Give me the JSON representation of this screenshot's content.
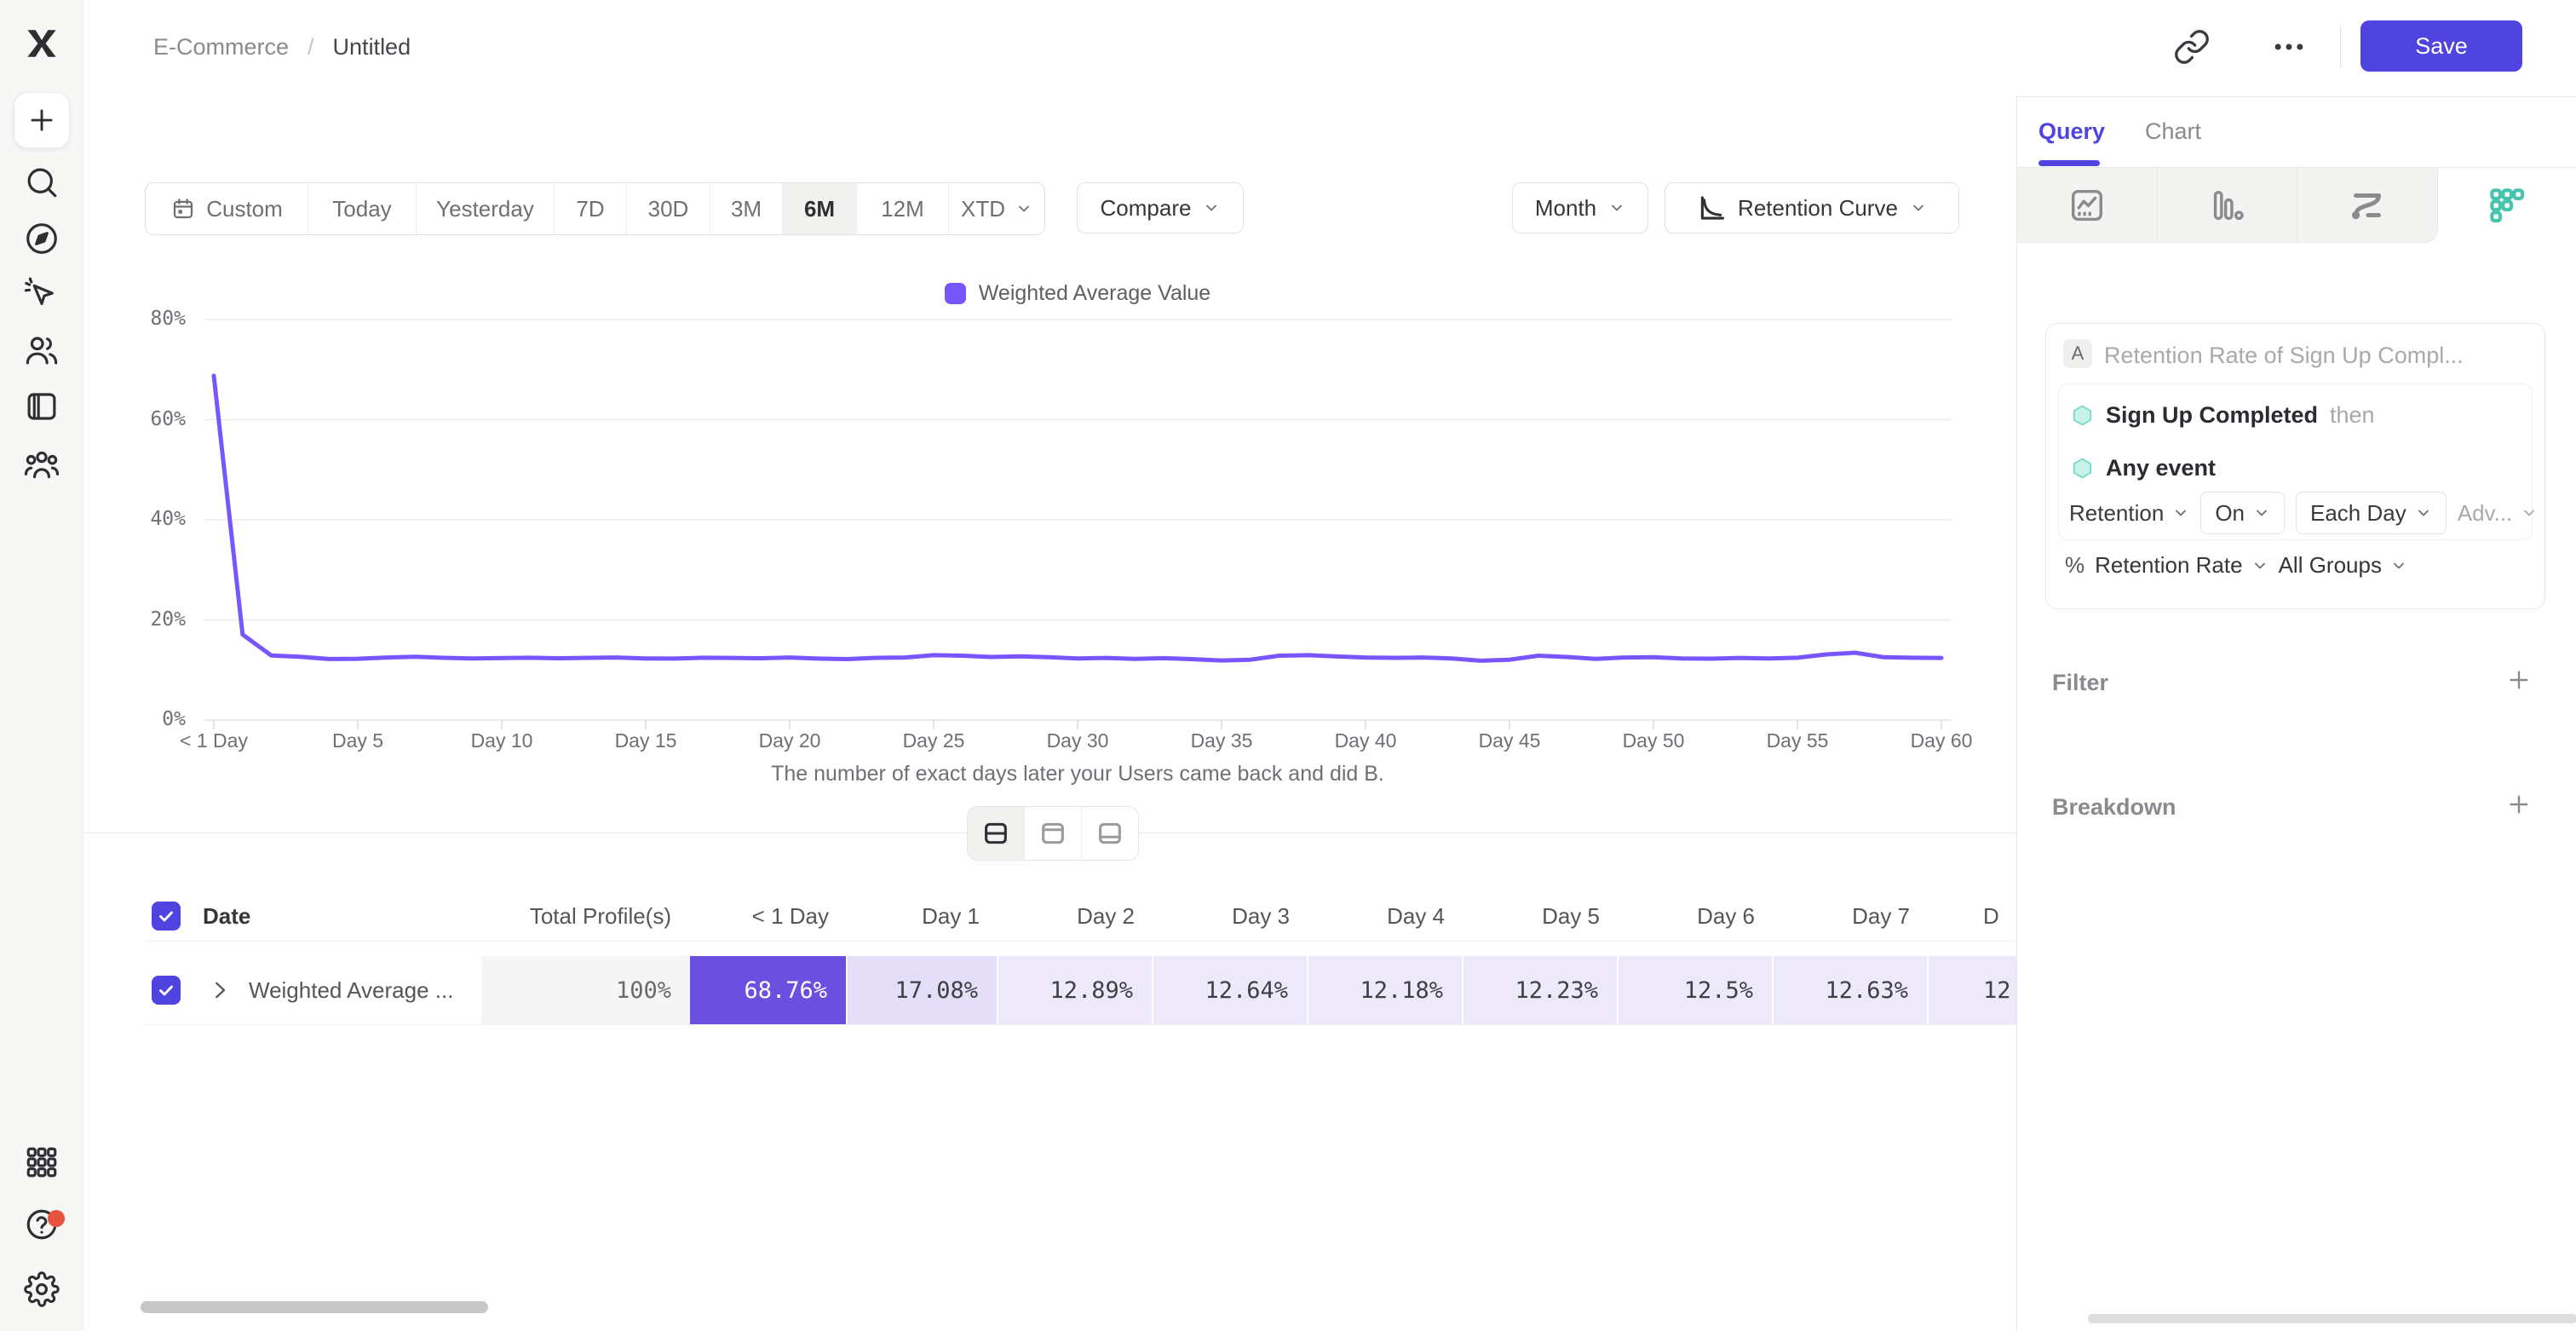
{
  "colors": {
    "accent": "#4f44e0",
    "line": "#7856ff",
    "teal": "#45c4ae",
    "heat_full": "#6b4fe0",
    "heat_day1": "#e4def8",
    "heat_light": "#ede9fb",
    "notification_dot": "#e8533f"
  },
  "sidebar": {
    "items": [
      "mixpanel-logo",
      "create-plus",
      "search",
      "explore-compass",
      "events-pointer",
      "users",
      "boards",
      "cohorts-group"
    ],
    "bottom_items": [
      "apps-grid",
      "help",
      "settings"
    ]
  },
  "header": {
    "breadcrumb_project": "E-Commerce",
    "breadcrumb_sep": "/",
    "breadcrumb_title": "Untitled",
    "save_label": "Save"
  },
  "toolbar": {
    "ranges": [
      "Custom",
      "Today",
      "Yesterday",
      "7D",
      "30D",
      "3M",
      "6M",
      "12M",
      "XTD"
    ],
    "selected_range": "6M",
    "compare_label": "Compare",
    "granularity_label": "Month",
    "chart_type_label": "Retention Curve"
  },
  "chart_data": {
    "type": "line",
    "legend": [
      "Weighted Average Value"
    ],
    "x_caption": "The number of exact days later your Users came back and did B.",
    "x_tick_labels": [
      "< 1 Day",
      "Day 5",
      "Day 10",
      "Day 15",
      "Day 20",
      "Day 25",
      "Day 30",
      "Day 35",
      "Day 40",
      "Day 45",
      "Day 50",
      "Day 55",
      "Day 60"
    ],
    "y_tick_labels": [
      "80%",
      "60%",
      "40%",
      "20%",
      "0%"
    ],
    "ylim": [
      0,
      80
    ],
    "x_unit": "days (0-60)",
    "values": [
      68.76,
      17.08,
      12.89,
      12.64,
      12.18,
      12.23,
      12.5,
      12.63,
      12.42,
      12.3,
      12.38,
      12.45,
      12.34,
      12.42,
      12.5,
      12.3,
      12.27,
      12.45,
      12.4,
      12.34,
      12.5,
      12.27,
      12.17,
      12.42,
      12.5,
      12.95,
      12.85,
      12.6,
      12.72,
      12.55,
      12.3,
      12.4,
      12.2,
      12.35,
      12.15,
      11.9,
      12.05,
      12.85,
      12.95,
      12.7,
      12.5,
      12.42,
      12.5,
      12.3,
      11.85,
      12.05,
      12.85,
      12.6,
      12.2,
      12.5,
      12.55,
      12.3,
      12.25,
      12.4,
      12.3,
      12.45,
      13.1,
      13.45,
      12.55,
      12.45,
      12.4
    ]
  },
  "layout_toggle": {
    "options": [
      "split",
      "table-top",
      "table-bottom"
    ],
    "active": "split"
  },
  "table": {
    "select_all_checked": true,
    "columns": [
      "Date",
      "Total Profile(s)",
      "< 1 Day",
      "Day 1",
      "Day 2",
      "Day 3",
      "Day 4",
      "Day 5",
      "Day 6",
      "Day 7",
      "D"
    ],
    "row": {
      "checked": true,
      "label": "Weighted Average ...",
      "total": "100%",
      "cells": [
        "68.76%",
        "17.08%",
        "12.89%",
        "12.64%",
        "12.18%",
        "12.23%",
        "12.5%",
        "12.63%",
        "12."
      ]
    }
  },
  "panel": {
    "tabs": [
      "Query",
      "Chart"
    ],
    "active_tab": "Query",
    "report_tabs": [
      "insights",
      "funnels",
      "flows",
      "retention"
    ],
    "active_report_tab": "retention",
    "query": {
      "badge": "A",
      "name_placeholder": "Retention Rate of Sign Up Compl...",
      "steps": [
        {
          "event": "Sign Up Completed",
          "suffix": "then"
        },
        {
          "event": "Any event",
          "suffix": ""
        }
      ],
      "controls": [
        {
          "label": "Retention",
          "style": "plain"
        },
        {
          "label": "On",
          "style": "boxed"
        },
        {
          "label": "Each Day",
          "style": "boxed"
        },
        {
          "label": "Adv...",
          "style": "muted"
        }
      ],
      "measure": {
        "prefix": "%",
        "metric": "Retention Rate",
        "segment": "All Groups"
      }
    },
    "sections": [
      {
        "label": "Filter"
      },
      {
        "label": "Breakdown"
      }
    ]
  }
}
